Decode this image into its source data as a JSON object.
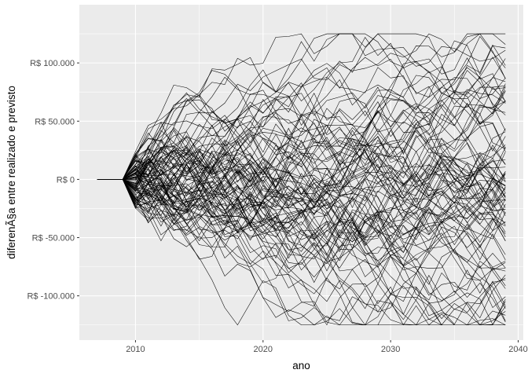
{
  "chart_data": {
    "type": "line",
    "title": "",
    "xlabel": "ano",
    "ylabel": "diferenÃ§a entre realizado e previsto",
    "xlim": [
      2005.6,
      2040.4
    ],
    "ylim": [
      -138000,
      150000
    ],
    "x_ticks": [
      2010,
      2020,
      2030,
      2040
    ],
    "x_tick_labels": [
      "2010",
      "2020",
      "2030",
      "2040"
    ],
    "y_ticks": [
      -100000,
      -50000,
      0,
      50000,
      100000
    ],
    "y_tick_labels": [
      "R$ -100.000",
      "R$ -50.000",
      "R$ 0",
      "R$ 50.000",
      "R$ 100.000"
    ],
    "panel_background": "#ebebeb",
    "grid": true,
    "grid_color": "#ffffff",
    "line_color": "#000000",
    "legend": "none",
    "n_series": 100,
    "flat_segment": {
      "x": [
        2007,
        2009
      ],
      "y": [
        0,
        0
      ]
    },
    "annual_step_range": [
      -25000,
      25000
    ],
    "value_bounds": [
      -125000,
      125000
    ],
    "x_end": 2039
  }
}
